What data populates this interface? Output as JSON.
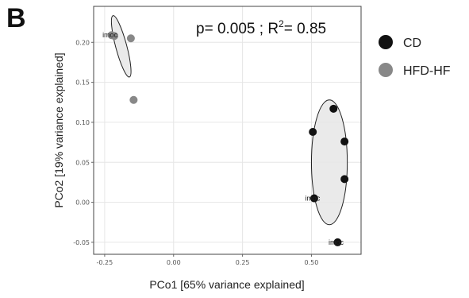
{
  "panel_label": "B",
  "chart_data": {
    "type": "scatter",
    "xlabel": "PCo1 [65% variance explained]",
    "ylabel": "PCo2 [19% variance explained]",
    "xlim": [
      -0.29,
      0.68
    ],
    "ylim": [
      -0.065,
      0.245
    ],
    "xticks": [
      -0.25,
      0.0,
      0.25,
      0.5
    ],
    "xtick_labels": [
      "-0.25",
      "0.00",
      "0.25",
      "0.50"
    ],
    "yticks": [
      -0.05,
      0.0,
      0.05,
      0.1,
      0.15,
      0.2
    ],
    "ytick_labels": [
      "-0.05",
      "0.00",
      "0.05",
      "0.10",
      "0.15",
      "0.20"
    ],
    "grid": true,
    "legend_position": "right",
    "stat_annotation": {
      "p_text": "p= 0.005 ; R",
      "r2_sup": "2",
      "r2_text": "= 0.85"
    },
    "series": [
      {
        "name": "CD",
        "color": "#111111",
        "points": [
          {
            "x": 0.58,
            "y": 0.117
          },
          {
            "x": 0.505,
            "y": 0.088
          },
          {
            "x": 0.62,
            "y": 0.076
          },
          {
            "x": 0.62,
            "y": 0.029
          },
          {
            "x": 0.51,
            "y": 0.005
          },
          {
            "x": 0.595,
            "y": -0.05
          }
        ],
        "ellipse": {
          "cx": 0.565,
          "cy": 0.05,
          "rx": 0.065,
          "ry": 0.078,
          "angle": 0
        }
      },
      {
        "name": "HFD-HF",
        "color": "#888888",
        "points": [
          {
            "x": -0.225,
            "y": 0.209
          },
          {
            "x": -0.215,
            "y": 0.208
          },
          {
            "x": -0.155,
            "y": 0.205
          },
          {
            "x": -0.145,
            "y": 0.128
          }
        ],
        "ellipse": {
          "cx": -0.19,
          "cy": 0.195,
          "rx": 0.115,
          "ry": 0.02,
          "angle": 75
        }
      }
    ],
    "point_labels": [
      {
        "text": "imoc",
        "x": -0.225,
        "y": 0.209
      },
      {
        "text": "imoc",
        "x": 0.51,
        "y": 0.005
      },
      {
        "text": "imoc",
        "x": 0.595,
        "y": -0.05
      }
    ]
  }
}
